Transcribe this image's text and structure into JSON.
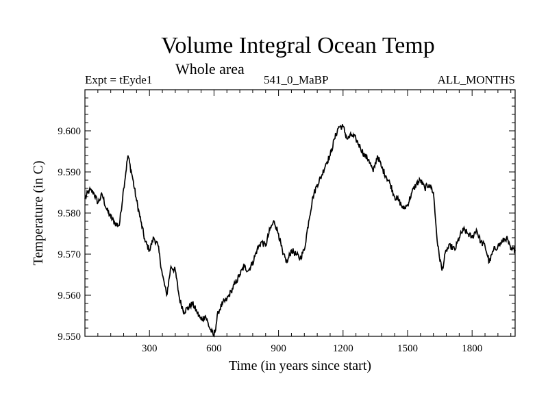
{
  "chart_data": {
    "type": "line",
    "title": "Volume Integral Ocean Temp",
    "subtitle": "Whole area",
    "experiment": "Expt = tEyde1",
    "run_label": "541_0_MaBP",
    "months_label": "ALL_MONTHS",
    "xlabel": "Time (in years since start)",
    "ylabel": "Temperature (in C)",
    "xlim": [
      0,
      2000
    ],
    "ylim": [
      9.55,
      9.61
    ],
    "xticks": [
      300,
      600,
      900,
      1200,
      1500,
      1800
    ],
    "xtick_labels": [
      "300",
      "600",
      "900",
      "1200",
      "1500",
      "1800"
    ],
    "yticks": [
      9.55,
      9.56,
      9.57,
      9.58,
      9.59,
      9.6
    ],
    "ytick_labels": [
      "9.550",
      "9.560",
      "9.570",
      "9.580",
      "9.590",
      "9.600"
    ],
    "series": [
      {
        "name": "Volume Integral Ocean Temp",
        "x": [
          0,
          20,
          40,
          60,
          80,
          100,
          120,
          140,
          160,
          180,
          200,
          220,
          240,
          260,
          280,
          300,
          320,
          340,
          360,
          380,
          400,
          420,
          440,
          460,
          480,
          500,
          520,
          540,
          560,
          580,
          600,
          620,
          640,
          660,
          680,
          700,
          720,
          740,
          760,
          780,
          800,
          820,
          840,
          860,
          880,
          900,
          920,
          940,
          960,
          980,
          1000,
          1020,
          1040,
          1060,
          1080,
          1100,
          1120,
          1140,
          1160,
          1180,
          1200,
          1220,
          1240,
          1260,
          1280,
          1300,
          1320,
          1340,
          1360,
          1380,
          1400,
          1420,
          1440,
          1460,
          1480,
          1500,
          1520,
          1540,
          1560,
          1580,
          1600,
          1620,
          1640,
          1660,
          1680,
          1700,
          1720,
          1740,
          1760,
          1780,
          1800,
          1820,
          1840,
          1860,
          1880,
          1900,
          1920,
          1940,
          1960,
          1980,
          2000
        ],
        "values": [
          9.5835,
          9.5855,
          9.585,
          9.5825,
          9.5845,
          9.581,
          9.579,
          9.5775,
          9.577,
          9.586,
          9.594,
          9.589,
          9.583,
          9.578,
          9.573,
          9.571,
          9.574,
          9.572,
          9.565,
          9.56,
          9.567,
          9.566,
          9.559,
          9.556,
          9.557,
          9.558,
          9.556,
          9.554,
          9.555,
          9.552,
          9.55,
          9.556,
          9.558,
          9.559,
          9.561,
          9.563,
          9.565,
          9.567,
          9.566,
          9.568,
          9.571,
          9.573,
          9.572,
          9.576,
          9.578,
          9.575,
          9.57,
          9.568,
          9.571,
          9.57,
          9.569,
          9.571,
          9.578,
          9.584,
          9.587,
          9.589,
          9.592,
          9.594,
          9.598,
          9.601,
          9.601,
          9.598,
          9.599,
          9.598,
          9.596,
          9.594,
          9.593,
          9.59,
          9.594,
          9.591,
          9.589,
          9.587,
          9.584,
          9.583,
          9.581,
          9.582,
          9.585,
          9.587,
          9.588,
          9.586,
          9.587,
          9.585,
          9.572,
          9.566,
          9.571,
          9.572,
          9.571,
          9.574,
          9.576,
          9.575,
          9.574,
          9.576,
          9.573,
          9.572,
          9.568,
          9.571,
          9.572,
          9.573,
          9.574,
          9.571,
          9.571
        ]
      }
    ]
  }
}
